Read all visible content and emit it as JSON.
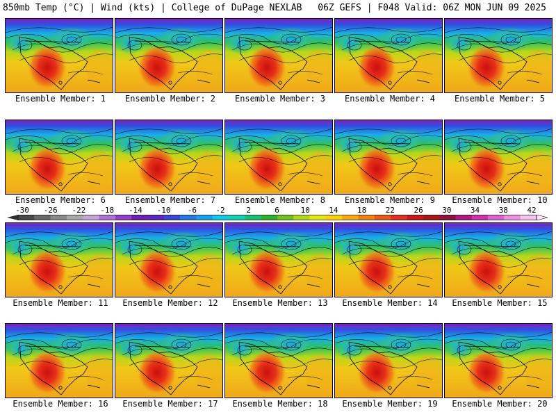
{
  "header": {
    "left": "850mb Temp (°C) | Wind (kts) | College of DuPage NEXLAB",
    "right": "06Z GEFS | F048 Valid: 06Z MON JUN 09 2025"
  },
  "panels": [
    {
      "label": "Ensemble Member: 1"
    },
    {
      "label": "Ensemble Member: 2"
    },
    {
      "label": "Ensemble Member: 3"
    },
    {
      "label": "Ensemble Member: 4"
    },
    {
      "label": "Ensemble Member: 5"
    },
    {
      "label": "Ensemble Member: 6"
    },
    {
      "label": "Ensemble Member: 7"
    },
    {
      "label": "Ensemble Member: 8"
    },
    {
      "label": "Ensemble Member: 9"
    },
    {
      "label": "Ensemble Member: 10"
    },
    {
      "label": "Ensemble Member: 11"
    },
    {
      "label": "Ensemble Member: 12"
    },
    {
      "label": "Ensemble Member: 13"
    },
    {
      "label": "Ensemble Member: 14"
    },
    {
      "label": "Ensemble Member: 15"
    },
    {
      "label": "Ensemble Member: 16"
    },
    {
      "label": "Ensemble Member: 17"
    },
    {
      "label": "Ensemble Member: 18"
    },
    {
      "label": "Ensemble Member: 19"
    },
    {
      "label": "Ensemble Member: 20"
    }
  ],
  "colorbar": {
    "ticks": [
      "-30",
      "-26",
      "-22",
      "-18",
      "-14",
      "-10",
      "-6",
      "-2",
      "2",
      "6",
      "10",
      "14",
      "18",
      "22",
      "26",
      "30",
      "34",
      "38",
      "42"
    ],
    "colors": [
      "#4a4a4a",
      "#6a6a6a",
      "#8a8a8a",
      "#a8a8a8",
      "#c4a4d8",
      "#b070d8",
      "#9040c8",
      "#7020b0",
      "#5828c0",
      "#3848d8",
      "#2878e8",
      "#18a0f0",
      "#10c8e8",
      "#10d0b0",
      "#18c070",
      "#30b030",
      "#70c020",
      "#b0d818",
      "#e0e818",
      "#f8d010",
      "#f8a810",
      "#f08010",
      "#e85818",
      "#e03020",
      "#c81818",
      "#a81818",
      "#901040",
      "#b01880",
      "#d030b0",
      "#e060d0",
      "#f090e0",
      "#f8c0f0"
    ]
  }
}
